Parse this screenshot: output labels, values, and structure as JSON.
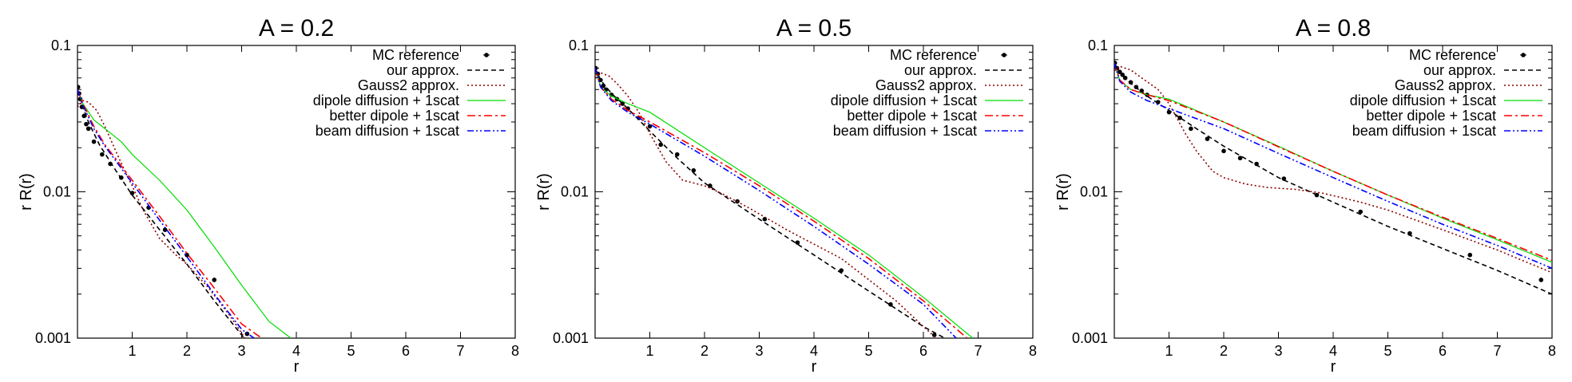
{
  "chart_data": [
    {
      "type": "line",
      "title": "A = 0.2",
      "xlabel": "r",
      "ylabel": "r R(r)",
      "yscale": "log",
      "xlim": [
        0,
        8
      ],
      "ylim": [
        0.001,
        0.1
      ],
      "xticks": [
        "1",
        "2",
        "3",
        "4",
        "5",
        "6",
        "7",
        "8"
      ],
      "yticks": [
        "0.1",
        "0.01",
        "0.001"
      ],
      "legend_position": "top-right",
      "grid": false,
      "series": [
        {
          "name": "MC reference",
          "style": "points",
          "color": "#000000",
          "x": [
            0.01,
            0.03,
            0.05,
            0.08,
            0.12,
            0.16,
            0.2,
            0.3,
            0.45,
            0.6,
            0.8,
            1.0,
            1.3,
            1.6,
            2.0,
            2.5,
            3.1
          ],
          "y": [
            0.052,
            0.047,
            0.043,
            0.038,
            0.033,
            0.029,
            0.027,
            0.022,
            0.018,
            0.0155,
            0.0125,
            0.0098,
            0.0078,
            0.0055,
            0.0037,
            0.0025,
            0.00107
          ]
        },
        {
          "name": "our approx.",
          "style": "dashed",
          "color": "#000000",
          "x": [
            0.0,
            0.05,
            0.1,
            0.2,
            0.4,
            0.7,
            1.0,
            1.5,
            2.0,
            2.5,
            3.0,
            3.2
          ],
          "y": [
            0.05,
            0.044,
            0.038,
            0.03,
            0.021,
            0.014,
            0.0095,
            0.0055,
            0.0032,
            0.0018,
            0.00105,
            0.00085
          ]
        },
        {
          "name": "Gauss2 approx.",
          "style": "dotted",
          "color": "#8b0000",
          "x": [
            0.0,
            0.1,
            0.2,
            0.35,
            0.5,
            0.7,
            0.9,
            1.0,
            1.2,
            1.5,
            1.8,
            2.0,
            2.4,
            2.8,
            3.1
          ],
          "y": [
            0.038,
            0.042,
            0.041,
            0.036,
            0.028,
            0.019,
            0.013,
            0.011,
            0.0075,
            0.0048,
            0.0037,
            0.0032,
            0.0022,
            0.0014,
            0.00095
          ]
        },
        {
          "name": "dipole diffusion + 1scat",
          "style": "solid-thin",
          "color": "#00dd00",
          "x": [
            0.0,
            0.1,
            0.3,
            0.5,
            0.8,
            1.0,
            1.5,
            2.0,
            2.5,
            3.0,
            3.5,
            3.9
          ],
          "y": [
            0.05,
            0.04,
            0.031,
            0.027,
            0.022,
            0.018,
            0.012,
            0.0075,
            0.0042,
            0.0023,
            0.0013,
            0.001
          ]
        },
        {
          "name": "better dipole + 1scat",
          "style": "dashdot",
          "color": "#ff0000",
          "x": [
            0.0,
            0.1,
            0.3,
            0.5,
            1.0,
            1.5,
            2.0,
            2.5,
            3.0,
            3.5
          ],
          "y": [
            0.05,
            0.04,
            0.028,
            0.021,
            0.012,
            0.0068,
            0.0038,
            0.0022,
            0.00125,
            0.00092
          ]
        },
        {
          "name": "beam diffusion + 1scat",
          "style": "dashdotdot",
          "color": "#0000ff",
          "x": [
            0.0,
            0.1,
            0.3,
            0.5,
            1.0,
            1.5,
            2.0,
            2.5,
            3.0,
            3.4
          ],
          "y": [
            0.05,
            0.039,
            0.027,
            0.0205,
            0.0115,
            0.0064,
            0.0036,
            0.002,
            0.00115,
            0.0009
          ]
        }
      ]
    },
    {
      "type": "line",
      "title": "A = 0.5",
      "xlabel": "r",
      "ylabel": "r R(r)",
      "yscale": "log",
      "xlim": [
        0,
        8
      ],
      "ylim": [
        0.001,
        0.1
      ],
      "xticks": [
        "1",
        "2",
        "3",
        "4",
        "5",
        "6",
        "7",
        "8"
      ],
      "yticks": [
        "0.1",
        "0.01",
        "0.001"
      ],
      "legend_position": "top-right",
      "grid": false,
      "series": [
        {
          "name": "MC reference",
          "style": "points",
          "color": "#000000",
          "x": [
            0.01,
            0.05,
            0.1,
            0.15,
            0.2,
            0.3,
            0.4,
            0.5,
            0.6,
            0.8,
            1.0,
            1.2,
            1.5,
            1.8,
            2.1,
            2.6,
            3.1,
            3.7,
            4.5,
            5.4,
            6.2
          ],
          "y": [
            0.07,
            0.064,
            0.058,
            0.053,
            0.05,
            0.046,
            0.043,
            0.04,
            0.037,
            0.032,
            0.028,
            0.021,
            0.018,
            0.014,
            0.011,
            0.0086,
            0.0065,
            0.0045,
            0.0029,
            0.0017,
            0.00105
          ]
        },
        {
          "name": "our approx.",
          "style": "dashed",
          "color": "#000000",
          "x": [
            0.0,
            0.1,
            0.3,
            0.6,
            1.0,
            1.5,
            2.0,
            3.0,
            4.0,
            5.0,
            6.0,
            6.5
          ],
          "y": [
            0.07,
            0.058,
            0.047,
            0.037,
            0.026,
            0.017,
            0.0115,
            0.0065,
            0.0037,
            0.0021,
            0.0012,
            0.00095
          ]
        },
        {
          "name": "Gauss2 approx.",
          "style": "dotted",
          "color": "#8b0000",
          "x": [
            0.0,
            0.1,
            0.25,
            0.4,
            0.6,
            0.8,
            1.0,
            1.3,
            1.6,
            2.0,
            2.3,
            2.8,
            3.5,
            4.5,
            5.5,
            6.0,
            6.3
          ],
          "y": [
            0.06,
            0.065,
            0.062,
            0.055,
            0.045,
            0.035,
            0.025,
            0.016,
            0.012,
            0.011,
            0.0098,
            0.0078,
            0.0055,
            0.0035,
            0.0018,
            0.0012,
            0.00095
          ]
        },
        {
          "name": "dipole diffusion + 1scat",
          "style": "solid-thin",
          "color": "#00dd00",
          "x": [
            0.0,
            0.1,
            0.3,
            0.6,
            1.0,
            2.0,
            3.0,
            4.0,
            5.0,
            6.0,
            6.9
          ],
          "y": [
            0.07,
            0.052,
            0.045,
            0.04,
            0.035,
            0.02,
            0.0115,
            0.0066,
            0.0037,
            0.0019,
            0.001
          ]
        },
        {
          "name": "better dipole + 1scat",
          "style": "dashdot",
          "color": "#ff0000",
          "x": [
            0.0,
            0.1,
            0.3,
            0.6,
            1.0,
            2.0,
            3.0,
            4.0,
            5.0,
            6.0,
            6.8
          ],
          "y": [
            0.07,
            0.052,
            0.043,
            0.036,
            0.03,
            0.0185,
            0.011,
            0.0063,
            0.0035,
            0.0018,
            0.001
          ]
        },
        {
          "name": "beam diffusion + 1scat",
          "style": "dashdotdot",
          "color": "#0000ff",
          "x": [
            0.0,
            0.1,
            0.3,
            0.6,
            1.0,
            2.0,
            3.0,
            4.0,
            5.0,
            6.0,
            6.6
          ],
          "y": [
            0.07,
            0.052,
            0.042,
            0.035,
            0.029,
            0.0175,
            0.0102,
            0.0058,
            0.0032,
            0.0017,
            0.001
          ]
        }
      ]
    },
    {
      "type": "line",
      "title": "A = 0.8",
      "xlabel": "r",
      "ylabel": "r R(r)",
      "yscale": "log",
      "xlim": [
        0,
        8
      ],
      "ylim": [
        0.001,
        0.1
      ],
      "xticks": [
        "1",
        "2",
        "3",
        "4",
        "5",
        "6",
        "7",
        "8"
      ],
      "yticks": [
        "0.1",
        "0.01",
        "0.001"
      ],
      "legend_position": "top-right",
      "grid": false,
      "series": [
        {
          "name": "MC reference",
          "style": "points",
          "color": "#000000",
          "x": [
            0.01,
            0.05,
            0.1,
            0.15,
            0.2,
            0.3,
            0.4,
            0.5,
            0.6,
            0.8,
            1.0,
            1.2,
            1.4,
            1.7,
            2.0,
            2.3,
            2.6,
            3.1,
            3.7,
            4.5,
            5.4,
            6.5,
            7.8
          ],
          "y": [
            0.076,
            0.07,
            0.066,
            0.063,
            0.06,
            0.056,
            0.052,
            0.049,
            0.046,
            0.041,
            0.035,
            0.032,
            0.027,
            0.023,
            0.019,
            0.017,
            0.0155,
            0.0123,
            0.0095,
            0.0073,
            0.0052,
            0.0037,
            0.0025
          ]
        },
        {
          "name": "our approx.",
          "style": "dashed",
          "color": "#000000",
          "x": [
            0.0,
            0.1,
            0.3,
            0.6,
            1.0,
            1.5,
            2.0,
            3.0,
            4.0,
            5.0,
            6.0,
            7.0,
            8.0
          ],
          "y": [
            0.076,
            0.065,
            0.055,
            0.045,
            0.036,
            0.027,
            0.0205,
            0.0125,
            0.0085,
            0.0058,
            0.0041,
            0.0029,
            0.002
          ]
        },
        {
          "name": "Gauss2 approx.",
          "style": "dotted",
          "color": "#8b0000",
          "x": [
            0.0,
            0.1,
            0.3,
            0.5,
            0.8,
            1.0,
            1.3,
            1.5,
            1.8,
            2.0,
            2.4,
            2.8,
            3.3,
            3.8,
            4.5,
            5.0,
            6.0,
            7.0,
            8.0
          ],
          "y": [
            0.067,
            0.072,
            0.068,
            0.06,
            0.05,
            0.04,
            0.025,
            0.019,
            0.0138,
            0.0125,
            0.0113,
            0.0107,
            0.0104,
            0.0098,
            0.0085,
            0.0075,
            0.0055,
            0.004,
            0.0028
          ]
        },
        {
          "name": "dipole diffusion + 1scat",
          "style": "solid-thin",
          "color": "#00dd00",
          "x": [
            0.0,
            0.1,
            0.3,
            0.6,
            1.0,
            2.0,
            3.0,
            4.0,
            5.0,
            6.0,
            7.0,
            8.0
          ],
          "y": [
            0.076,
            0.058,
            0.05,
            0.046,
            0.043,
            0.03,
            0.0205,
            0.0138,
            0.0095,
            0.0066,
            0.0047,
            0.0033
          ]
        },
        {
          "name": "better dipole + 1scat",
          "style": "dashdot",
          "color": "#ff0000",
          "x": [
            0.0,
            0.1,
            0.3,
            0.6,
            1.0,
            2.0,
            3.0,
            4.0,
            5.0,
            6.0,
            7.0,
            8.0
          ],
          "y": [
            0.076,
            0.058,
            0.05,
            0.046,
            0.042,
            0.03,
            0.0203,
            0.0138,
            0.0095,
            0.0067,
            0.0048,
            0.0034
          ]
        },
        {
          "name": "beam diffusion + 1scat",
          "style": "dashdotdot",
          "color": "#0000ff",
          "x": [
            0.0,
            0.1,
            0.3,
            0.6,
            1.0,
            2.0,
            3.0,
            4.0,
            5.0,
            6.0,
            7.0,
            8.0
          ],
          "y": [
            0.076,
            0.057,
            0.048,
            0.042,
            0.037,
            0.027,
            0.0183,
            0.0125,
            0.0086,
            0.006,
            0.0043,
            0.003
          ]
        }
      ]
    }
  ]
}
